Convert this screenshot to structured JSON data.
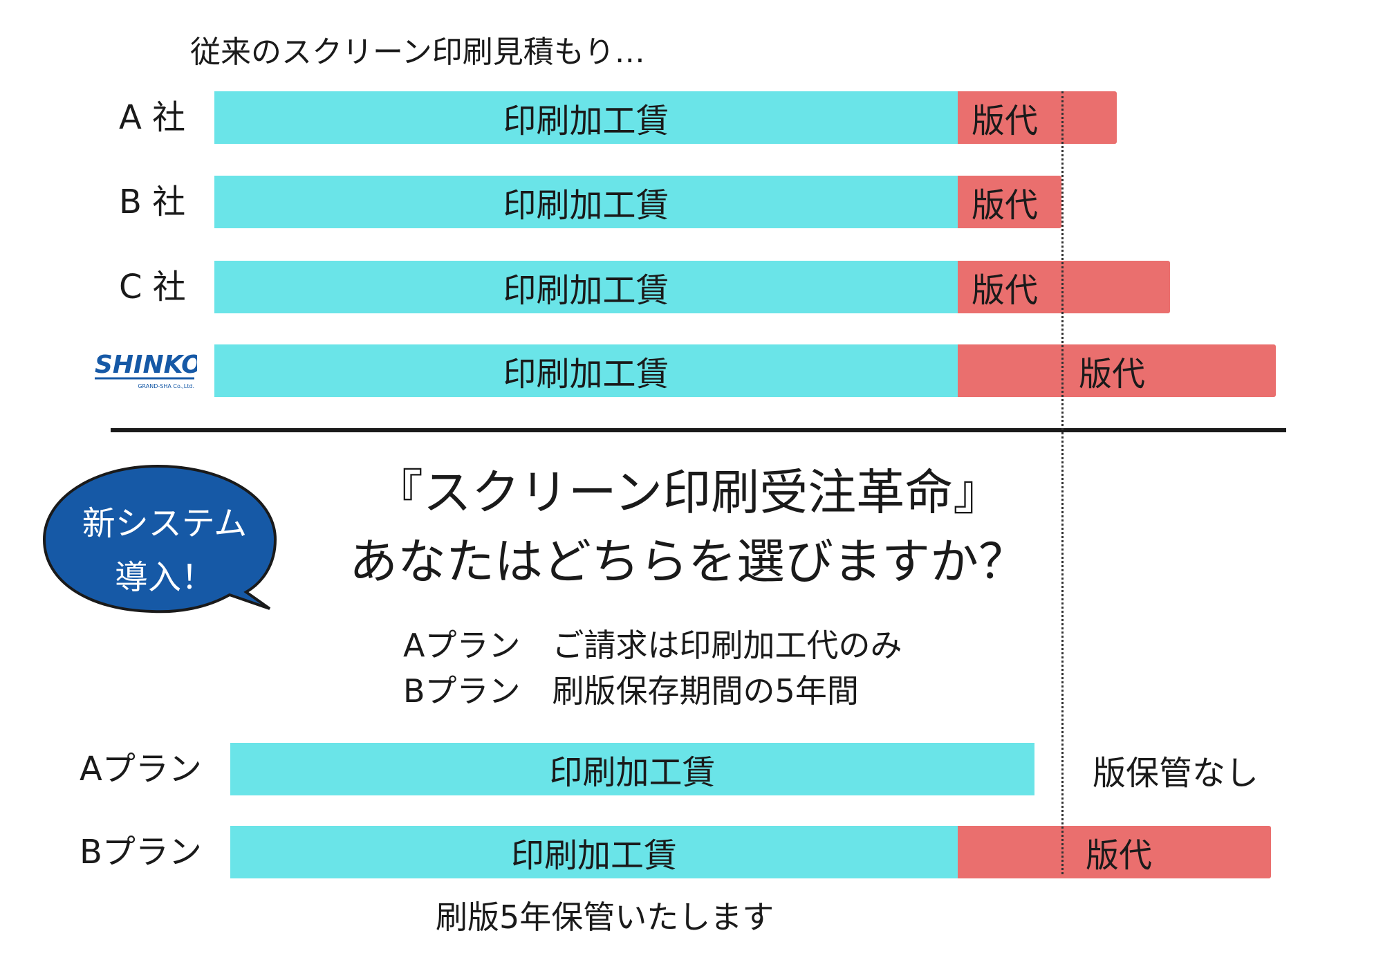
{
  "heading": "従来のスクリーン印刷見積もり…",
  "chart_data": [
    {
      "type": "bar",
      "orientation": "horizontal",
      "stacked": true,
      "categories": [
        "A 社",
        "B 社",
        "C 社",
        "SHINKO"
      ],
      "segment_labels": [
        "印刷加工賃",
        "版代"
      ],
      "series": [
        {
          "values": [
            1075,
            1075,
            1075,
            1075
          ]
        },
        {
          "values": [
            230,
            150,
            307,
            460
          ]
        }
      ],
      "xlim": [
        0,
        1535
      ]
    },
    {
      "type": "bar",
      "orientation": "horizontal",
      "stacked": true,
      "categories": [
        "Aプラン",
        "Bプラン"
      ],
      "segment_labels": [
        "印刷加工賃",
        "版代"
      ],
      "series": [
        {
          "values": [
            1163,
            1052
          ]
        },
        {
          "values": [
            0,
            453
          ]
        }
      ],
      "xlim": [
        0,
        1535
      ]
    }
  ],
  "colors": {
    "print_fee": "#6ae4e8",
    "plate_fee": "#ea6f6e",
    "bubble": "#1659a6",
    "logo": "#1659a6"
  },
  "logo": {
    "name": "SHINKO",
    "sub": "GRAND-SHA Co.,Ltd."
  },
  "bubble": {
    "line1": "新システム",
    "line2": "導入！"
  },
  "title": {
    "line1": "『スクリーン印刷受注革命』",
    "line2": "あなたはどちらを選びますか？"
  },
  "plans": {
    "line1": "Aプラン　ご請求は印刷加工代のみ",
    "line2": "Bプラン　刷版保存期間の5年間"
  },
  "a_plan_note": "版保管なし",
  "b_plan_note": "刷版5年保管いたします"
}
